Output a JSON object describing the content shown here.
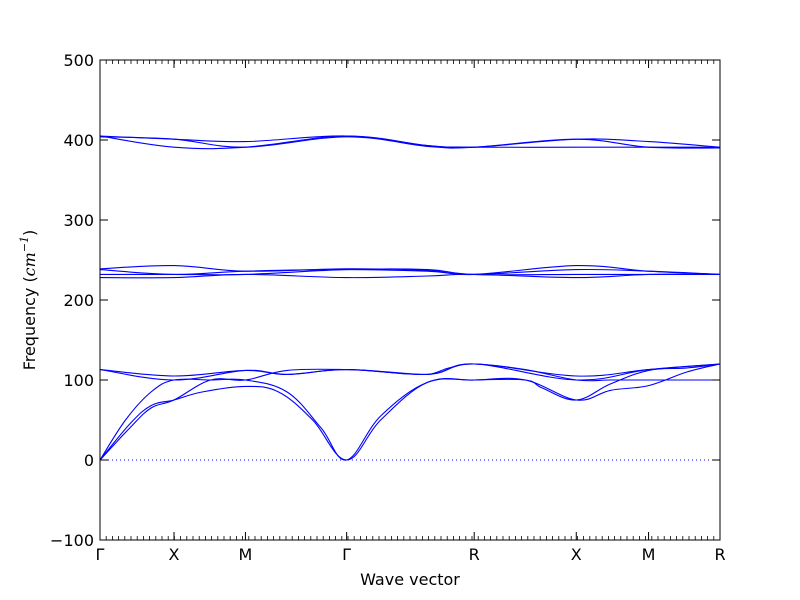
{
  "chart_data": {
    "type": "line",
    "xlabel": "Wave vector",
    "ylabel": "Frequency (",
    "ylabel_unit_base": "cm",
    "ylabel_unit_exp": "−1",
    "ylabel_close": ")",
    "ylim": [
      -100,
      500
    ],
    "yticks": [
      -100,
      0,
      100,
      200,
      300,
      400,
      500
    ],
    "ytick_labels": [
      "−100",
      "0",
      "100",
      "200",
      "300",
      "400",
      "500"
    ],
    "xlim": [
      0,
      7.29
    ],
    "xticks": [
      {
        "label": "Γ",
        "x": 0.0
      },
      {
        "label": "X",
        "x": 0.87
      },
      {
        "label": "M",
        "x": 1.71
      },
      {
        "label": "Γ",
        "x": 2.9
      },
      {
        "label": "R",
        "x": 4.4
      },
      {
        "label": "X",
        "x": 5.6
      },
      {
        "label": "M",
        "x": 6.45
      },
      {
        "label": "R",
        "x": 7.29
      }
    ],
    "zero_line": {
      "y": 0,
      "style": "dotted",
      "color": "#0000ff"
    },
    "line_color": "#0000ff",
    "grid": false,
    "series": [
      {
        "points": [
          [
            0,
            113
          ],
          [
            0.87,
            105
          ],
          [
            1.71,
            112
          ],
          [
            2.2,
            107
          ],
          [
            2.9,
            113
          ],
          [
            3.85,
            107
          ],
          [
            4.4,
            120
          ],
          [
            5.6,
            105
          ],
          [
            6.45,
            113
          ],
          [
            7.29,
            120
          ]
        ]
      },
      {
        "points": [
          [
            0,
            113
          ],
          [
            0.87,
            100
          ],
          [
            1.71,
            112
          ],
          [
            2.2,
            107
          ],
          [
            2.9,
            113
          ],
          [
            3.85,
            107
          ],
          [
            4.4,
            120
          ],
          [
            5.6,
            100
          ],
          [
            6.45,
            113
          ],
          [
            7.29,
            120
          ]
        ]
      },
      {
        "points": [
          [
            0,
            0
          ],
          [
            0.35,
            40
          ],
          [
            0.6,
            65
          ],
          [
            0.87,
            75
          ],
          [
            1.3,
            100
          ],
          [
            1.71,
            100
          ],
          [
            2.2,
            112
          ],
          [
            2.9,
            113
          ],
          [
            3.4,
            110
          ],
          [
            3.85,
            107
          ],
          [
            4.1,
            115
          ],
          [
            4.4,
            120
          ],
          [
            5.0,
            113
          ],
          [
            5.6,
            100
          ],
          [
            6.0,
            100
          ],
          [
            6.45,
            100
          ],
          [
            7.29,
            100
          ]
        ]
      },
      {
        "points": [
          [
            0,
            0
          ],
          [
            0.35,
            45
          ],
          [
            0.6,
            68
          ],
          [
            0.87,
            75
          ],
          [
            1.2,
            85
          ],
          [
            1.71,
            92
          ],
          [
            2.1,
            85
          ],
          [
            2.5,
            50
          ],
          [
            2.9,
            0
          ],
          [
            3.3,
            50
          ],
          [
            3.85,
            97
          ],
          [
            4.4,
            100
          ],
          [
            5.0,
            100
          ],
          [
            5.6,
            75
          ],
          [
            6.0,
            87
          ],
          [
            6.45,
            93
          ],
          [
            6.9,
            110
          ],
          [
            7.29,
            120
          ]
        ]
      },
      {
        "points": [
          [
            0,
            0
          ],
          [
            0.3,
            50
          ],
          [
            0.6,
            85
          ],
          [
            0.87,
            100
          ],
          [
            1.3,
            100
          ],
          [
            1.71,
            100
          ],
          [
            2.2,
            85
          ],
          [
            2.6,
            40
          ],
          [
            2.9,
            0
          ],
          [
            3.3,
            55
          ],
          [
            3.85,
            97
          ],
          [
            4.4,
            100
          ],
          [
            5.0,
            100
          ],
          [
            5.2,
            90
          ],
          [
            5.6,
            75
          ],
          [
            6.0,
            95
          ],
          [
            6.45,
            112
          ],
          [
            6.9,
            115
          ],
          [
            7.29,
            120
          ]
        ]
      },
      {
        "points": [
          [
            0,
            228
          ],
          [
            0.87,
            228
          ],
          [
            1.71,
            232
          ],
          [
            2.9,
            228
          ],
          [
            3.85,
            230
          ],
          [
            4.4,
            232
          ],
          [
            5.6,
            228
          ],
          [
            6.45,
            232
          ],
          [
            7.29,
            232
          ]
        ]
      },
      {
        "points": [
          [
            0,
            232
          ],
          [
            0.87,
            232
          ],
          [
            1.71,
            232
          ],
          [
            2.9,
            238
          ],
          [
            3.85,
            238
          ],
          [
            4.4,
            232
          ],
          [
            5.6,
            232
          ],
          [
            6.45,
            232
          ],
          [
            7.29,
            232
          ]
        ]
      },
      {
        "points": [
          [
            0,
            238
          ],
          [
            0.87,
            232
          ],
          [
            1.71,
            236
          ],
          [
            2.9,
            238
          ],
          [
            3.85,
            236
          ],
          [
            4.4,
            232
          ],
          [
            5.6,
            238
          ],
          [
            6.45,
            236
          ],
          [
            7.29,
            232
          ]
        ]
      },
      {
        "points": [
          [
            0,
            239
          ],
          [
            0.87,
            243
          ],
          [
            1.71,
            236
          ],
          [
            2.9,
            239
          ],
          [
            3.85,
            237
          ],
          [
            4.4,
            232
          ],
          [
            5.6,
            243
          ],
          [
            6.45,
            236
          ],
          [
            7.29,
            232
          ]
        ]
      },
      {
        "points": [
          [
            0,
            405
          ],
          [
            0.87,
            401
          ],
          [
            1.71,
            398
          ],
          [
            2.9,
            405
          ],
          [
            3.85,
            393
          ],
          [
            4.4,
            391
          ],
          [
            5.6,
            401
          ],
          [
            6.45,
            398
          ],
          [
            7.29,
            391
          ]
        ]
      },
      {
        "points": [
          [
            0,
            405
          ],
          [
            0.87,
            391
          ],
          [
            1.71,
            391
          ],
          [
            2.9,
            405
          ],
          [
            3.85,
            393
          ],
          [
            4.4,
            391
          ],
          [
            5.6,
            391
          ],
          [
            6.45,
            391
          ],
          [
            7.29,
            391
          ]
        ]
      },
      {
        "points": [
          [
            0,
            404
          ],
          [
            0.87,
            401
          ],
          [
            1.71,
            391
          ],
          [
            2.9,
            404
          ],
          [
            3.85,
            392
          ],
          [
            4.4,
            391
          ],
          [
            5.6,
            401
          ],
          [
            6.45,
            391
          ],
          [
            7.29,
            390
          ]
        ]
      }
    ]
  }
}
